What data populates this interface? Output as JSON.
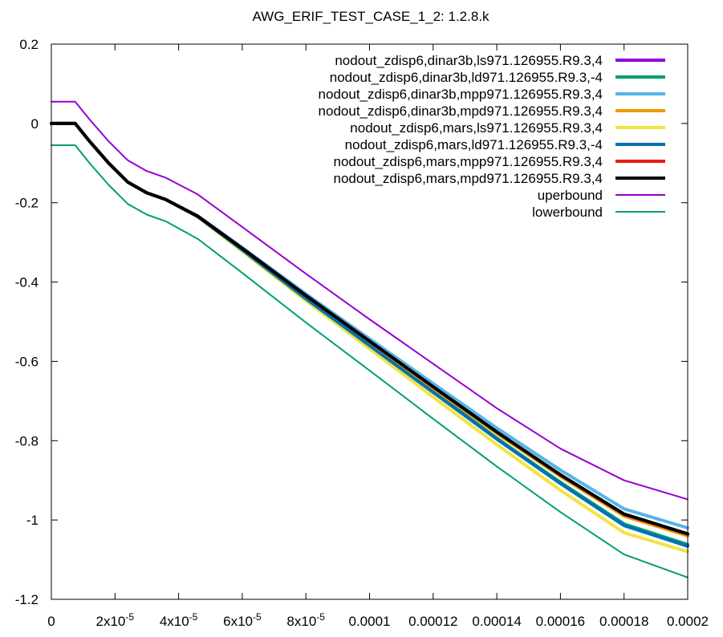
{
  "chart_data": {
    "type": "line",
    "title": "AWG_ERIF_TEST_CASE_1_2: 1.2.8.k",
    "xlabel": "",
    "ylabel": "",
    "xlim": [
      0,
      0.0002
    ],
    "ylim": [
      -1.2,
      0.2
    ],
    "x_ticks": [
      {
        "value": 0,
        "label": "0"
      },
      {
        "value": 2e-05,
        "label": "2x10",
        "exp": "-5"
      },
      {
        "value": 4e-05,
        "label": "4x10",
        "exp": "-5"
      },
      {
        "value": 6e-05,
        "label": "6x10",
        "exp": "-5"
      },
      {
        "value": 8e-05,
        "label": "8x10",
        "exp": "-5"
      },
      {
        "value": 0.0001,
        "label": "0.0001"
      },
      {
        "value": 0.00012,
        "label": "0.00012"
      },
      {
        "value": 0.00014,
        "label": "0.00014"
      },
      {
        "value": 0.00016,
        "label": "0.00016"
      },
      {
        "value": 0.00018,
        "label": "0.00018"
      },
      {
        "value": 0.0002,
        "label": "0.0002"
      }
    ],
    "y_ticks": [
      {
        "value": 0.2,
        "label": "0.2"
      },
      {
        "value": 0,
        "label": "0"
      },
      {
        "value": -0.2,
        "label": "-0.2"
      },
      {
        "value": -0.4,
        "label": "-0.4"
      },
      {
        "value": -0.6,
        "label": "-0.6"
      },
      {
        "value": -0.8,
        "label": "-0.8"
      },
      {
        "value": -1,
        "label": "-1"
      },
      {
        "value": -1.2,
        "label": "-1.2"
      }
    ],
    "grid": false,
    "legend_position": "top-right",
    "series": [
      {
        "name": "nodout_zdisp6,dinar3b,ls971.126955.R9.3,4",
        "color": "#9400d3",
        "width": "thick",
        "x": [
          0,
          7.5e-06,
          1.2e-05,
          1.8e-05,
          2.4e-05,
          3e-05,
          3.6e-05,
          4.6e-05,
          6e-05,
          8e-05,
          0.0001,
          0.00012,
          0.00014,
          0.00016,
          0.00018,
          0.0002
        ],
        "y": [
          0,
          0,
          -0.045,
          -0.1,
          -0.148,
          -0.175,
          -0.192,
          -0.235,
          -0.318,
          -0.44,
          -0.558,
          -0.676,
          -0.794,
          -0.906,
          -1.012,
          -1.065
        ]
      },
      {
        "name": "nodout_zdisp6,dinar3b,ld971.126955.R9.3,-4",
        "color": "#009e73",
        "width": "thick",
        "x": [
          0,
          7.5e-06,
          1.2e-05,
          1.8e-05,
          2.4e-05,
          3e-05,
          3.6e-05,
          4.6e-05,
          6e-05,
          8e-05,
          0.0001,
          0.00012,
          0.00014,
          0.00016,
          0.00018,
          0.0002
        ],
        "y": [
          0,
          0,
          -0.045,
          -0.1,
          -0.148,
          -0.175,
          -0.192,
          -0.235,
          -0.318,
          -0.44,
          -0.558,
          -0.676,
          -0.794,
          -0.905,
          -1.01,
          -1.062
        ]
      },
      {
        "name": "nodout_zdisp6,dinar3b,mpp971.126955.R9.3,4",
        "color": "#56b4e9",
        "width": "thick",
        "x": [
          0,
          7.5e-06,
          1.2e-05,
          1.8e-05,
          2.4e-05,
          3e-05,
          3.6e-05,
          4.6e-05,
          6e-05,
          8e-05,
          0.0001,
          0.00012,
          0.00014,
          0.00016,
          0.00018,
          0.0002
        ],
        "y": [
          0,
          0,
          -0.045,
          -0.1,
          -0.148,
          -0.175,
          -0.192,
          -0.233,
          -0.313,
          -0.43,
          -0.543,
          -0.656,
          -0.768,
          -0.874,
          -0.972,
          -1.02
        ]
      },
      {
        "name": "nodout_zdisp6,dinar3b,mpd971.126955.R9.3,4",
        "color": "#e69f00",
        "width": "thick",
        "x": [
          0,
          7.5e-06,
          1.2e-05,
          1.8e-05,
          2.4e-05,
          3e-05,
          3.6e-05,
          4.6e-05,
          6e-05,
          8e-05,
          0.0001,
          0.00012,
          0.00014,
          0.00016,
          0.00018,
          0.0002
        ],
        "y": [
          0,
          0,
          -0.045,
          -0.1,
          -0.148,
          -0.175,
          -0.192,
          -0.234,
          -0.316,
          -0.436,
          -0.552,
          -0.668,
          -0.782,
          -0.89,
          -0.99,
          -1.04
        ]
      },
      {
        "name": "nodout_zdisp6,mars,ls971.126955.R9.3,4",
        "color": "#f0e442",
        "width": "thick",
        "x": [
          0,
          7.5e-06,
          1.2e-05,
          1.8e-05,
          2.4e-05,
          3e-05,
          3.6e-05,
          4.6e-05,
          6e-05,
          8e-05,
          0.0001,
          0.00012,
          0.00014,
          0.00016,
          0.00018,
          0.0002
        ],
        "y": [
          0,
          0,
          -0.045,
          -0.1,
          -0.148,
          -0.175,
          -0.192,
          -0.236,
          -0.322,
          -0.447,
          -0.568,
          -0.69,
          -0.81,
          -0.925,
          -1.032,
          -1.08
        ]
      },
      {
        "name": "nodout_zdisp6,mars,ld971.126955.R9.3,-4",
        "color": "#0072b2",
        "width": "thick",
        "x": [
          0,
          7.5e-06,
          1.2e-05,
          1.8e-05,
          2.4e-05,
          3e-05,
          3.6e-05,
          4.6e-05,
          6e-05,
          8e-05,
          0.0001,
          0.00012,
          0.00014,
          0.00016,
          0.00018,
          0.0002
        ],
        "y": [
          0,
          0,
          -0.045,
          -0.1,
          -0.148,
          -0.175,
          -0.192,
          -0.235,
          -0.319,
          -0.442,
          -0.56,
          -0.678,
          -0.796,
          -0.908,
          -1.014,
          -1.066
        ]
      },
      {
        "name": "nodout_zdisp6,mars,mpp971.126955.R9.3,4",
        "color": "#e51e10",
        "width": "thick",
        "x": [
          0,
          7.5e-06,
          1.2e-05,
          1.8e-05,
          2.4e-05,
          3e-05,
          3.6e-05,
          4.6e-05,
          6e-05,
          8e-05,
          0.0001,
          0.00012,
          0.00014,
          0.00016,
          0.00018,
          0.0002
        ],
        "y": [
          0,
          0,
          -0.045,
          -0.1,
          -0.148,
          -0.175,
          -0.192,
          -0.234,
          -0.315,
          -0.434,
          -0.549,
          -0.664,
          -0.778,
          -0.886,
          -0.986,
          -1.036
        ]
      },
      {
        "name": "nodout_zdisp6,mars,mpd971.126955.R9.3,4",
        "color": "#000000",
        "width": "thick",
        "x": [
          0,
          7.5e-06,
          1.2e-05,
          1.8e-05,
          2.4e-05,
          3e-05,
          3.6e-05,
          4.6e-05,
          6e-05,
          8e-05,
          0.0001,
          0.00012,
          0.00014,
          0.00016,
          0.00018,
          0.0002
        ],
        "y": [
          0,
          0,
          -0.045,
          -0.1,
          -0.148,
          -0.175,
          -0.192,
          -0.234,
          -0.315,
          -0.434,
          -0.549,
          -0.664,
          -0.778,
          -0.886,
          -0.985,
          -1.035
        ]
      },
      {
        "name": "uperbound",
        "color": "#9400d3",
        "width": "thin",
        "x": [
          0,
          7.5e-06,
          1.2e-05,
          1.8e-05,
          2.4e-05,
          3e-05,
          3.6e-05,
          4.6e-05,
          6e-05,
          8e-05,
          0.0001,
          0.00012,
          0.00014,
          0.00016,
          0.00018,
          0.0002
        ],
        "y": [
          0.055,
          0.055,
          0.01,
          -0.045,
          -0.093,
          -0.12,
          -0.137,
          -0.179,
          -0.261,
          -0.379,
          -0.494,
          -0.606,
          -0.718,
          -0.82,
          -0.9,
          -0.948
        ]
      },
      {
        "name": "lowerbound",
        "color": "#009e73",
        "width": "thin",
        "x": [
          0,
          7.5e-06,
          1.2e-05,
          1.8e-05,
          2.4e-05,
          3e-05,
          3.6e-05,
          4.6e-05,
          6e-05,
          8e-05,
          0.0001,
          0.00012,
          0.00014,
          0.00016,
          0.00018,
          0.0002
        ],
        "y": [
          -0.055,
          -0.055,
          -0.1,
          -0.155,
          -0.203,
          -0.23,
          -0.247,
          -0.291,
          -0.377,
          -0.502,
          -0.623,
          -0.745,
          -0.865,
          -0.98,
          -1.087,
          -1.145
        ]
      }
    ]
  }
}
